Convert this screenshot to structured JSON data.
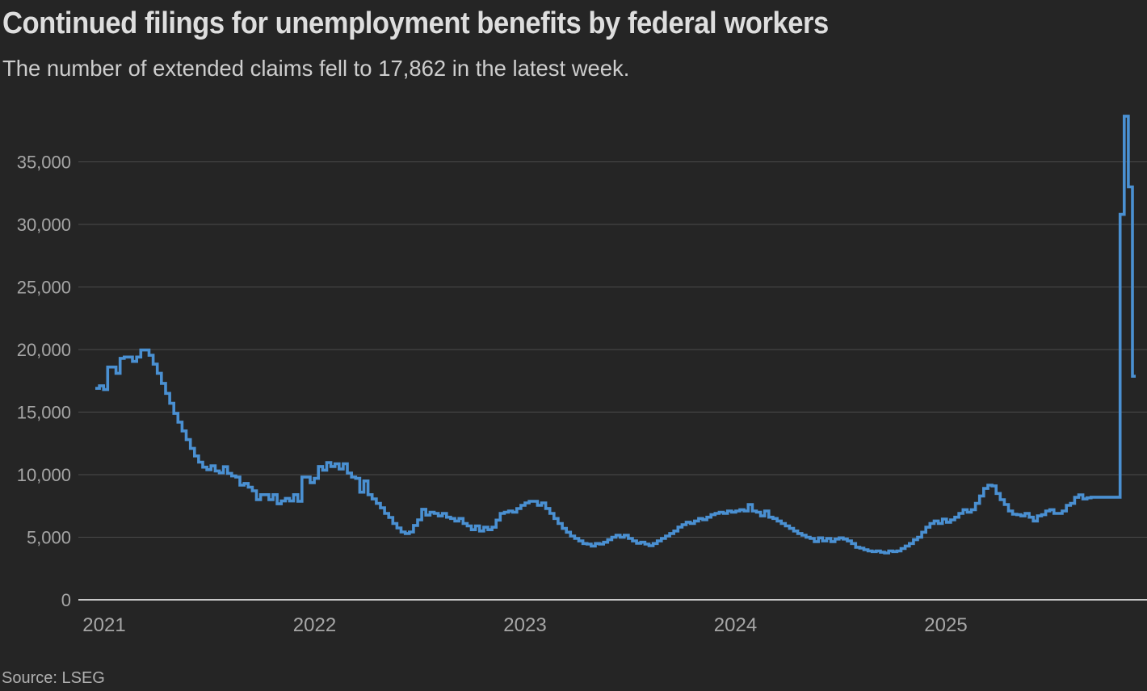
{
  "header": {
    "title": "Continued filings for unemployment benefits by federal workers",
    "subtitle": "The number of extended claims fell to 17,862 in the latest week."
  },
  "footer": {
    "source": "Source: LSEG"
  },
  "chart_data": {
    "type": "line",
    "line_shape": "step-after",
    "cadence": "weekly",
    "title": "Continued filings for unemployment benefits by federal workers",
    "xlabel": "",
    "ylabel": "",
    "legend": "none",
    "grid": "horizontal",
    "ylim": [
      0,
      39000
    ],
    "yticks": [
      0,
      5000,
      10000,
      15000,
      20000,
      25000,
      30000,
      35000
    ],
    "ytick_labels": [
      "0",
      "5,000",
      "10,000",
      "15,000",
      "20,000",
      "25,000",
      "30,000",
      "35,000"
    ],
    "xtick_labels": [
      "2021",
      "2022",
      "2023",
      "2024",
      "2025"
    ],
    "latest_value": 17862,
    "peak_value": 38650,
    "series": [
      {
        "name": "Continued filings",
        "values": [
          16900,
          17100,
          16800,
          18600,
          18600,
          18100,
          19300,
          19400,
          19400,
          19050,
          19400,
          19960,
          19960,
          19540,
          18830,
          18100,
          17300,
          16500,
          15700,
          14900,
          14200,
          13500,
          12800,
          12100,
          11500,
          11000,
          10600,
          10400,
          10700,
          10300,
          10150,
          10630,
          10100,
          9900,
          9810,
          9160,
          9300,
          9000,
          8710,
          8000,
          8400,
          8400,
          8000,
          8400,
          7670,
          7900,
          8100,
          7900,
          8400,
          7870,
          9810,
          9810,
          9360,
          9700,
          10650,
          10360,
          10970,
          10650,
          10870,
          10450,
          10870,
          10130,
          9810,
          9700,
          8600,
          9500,
          8400,
          8060,
          7700,
          7350,
          6900,
          6580,
          6100,
          5740,
          5420,
          5300,
          5420,
          5940,
          6390,
          7230,
          6770,
          7000,
          6900,
          6700,
          6900,
          6600,
          6500,
          6300,
          6500,
          6100,
          5900,
          5600,
          5900,
          5500,
          5800,
          5600,
          5800,
          6370,
          6900,
          7000,
          7100,
          7000,
          7290,
          7550,
          7740,
          7870,
          7870,
          7550,
          7740,
          7300,
          6900,
          6500,
          6100,
          5700,
          5400,
          5100,
          4900,
          4700,
          4500,
          4450,
          4300,
          4500,
          4450,
          4600,
          4800,
          5000,
          5160,
          5000,
          5160,
          4900,
          4700,
          4520,
          4600,
          4450,
          4320,
          4500,
          4700,
          4900,
          5100,
          5300,
          5500,
          5810,
          6000,
          6200,
          6100,
          6300,
          6500,
          6400,
          6600,
          6800,
          6900,
          7000,
          6900,
          7100,
          7000,
          7100,
          7200,
          7100,
          7610,
          7100,
          7000,
          6700,
          7100,
          6600,
          6500,
          6300,
          6100,
          5900,
          5700,
          5500,
          5300,
          5160,
          5000,
          4900,
          4650,
          4950,
          4700,
          4900,
          4650,
          4850,
          4950,
          4850,
          4700,
          4500,
          4200,
          4130,
          4000,
          3900,
          3850,
          3900,
          3800,
          3740,
          3900,
          3850,
          3900,
          4100,
          4300,
          4500,
          4800,
          5000,
          5400,
          5800,
          6100,
          6300,
          6100,
          6450,
          6200,
          6390,
          6600,
          6900,
          7200,
          7000,
          7200,
          7700,
          8300,
          8900,
          9160,
          9100,
          8500,
          8000,
          7610,
          7100,
          6840,
          6800,
          6700,
          6900,
          6600,
          6300,
          6700,
          6800,
          7100,
          7200,
          6900,
          6900,
          7100,
          7550,
          7700,
          8190,
          8390,
          8060,
          8150,
          8200,
          8200,
          8200,
          8200,
          8200,
          8200,
          8200,
          30800,
          38650,
          33000,
          17862
        ]
      }
    ],
    "colors": {
      "background": "#252525",
      "line": "#4a90d2",
      "grid": "#4a4a4a",
      "baseline": "#c8c8c8",
      "tick_label": "#a6a6a6",
      "title": "#dedede",
      "subtitle": "#cdcdcd",
      "source": "#b0b0b0"
    }
  }
}
